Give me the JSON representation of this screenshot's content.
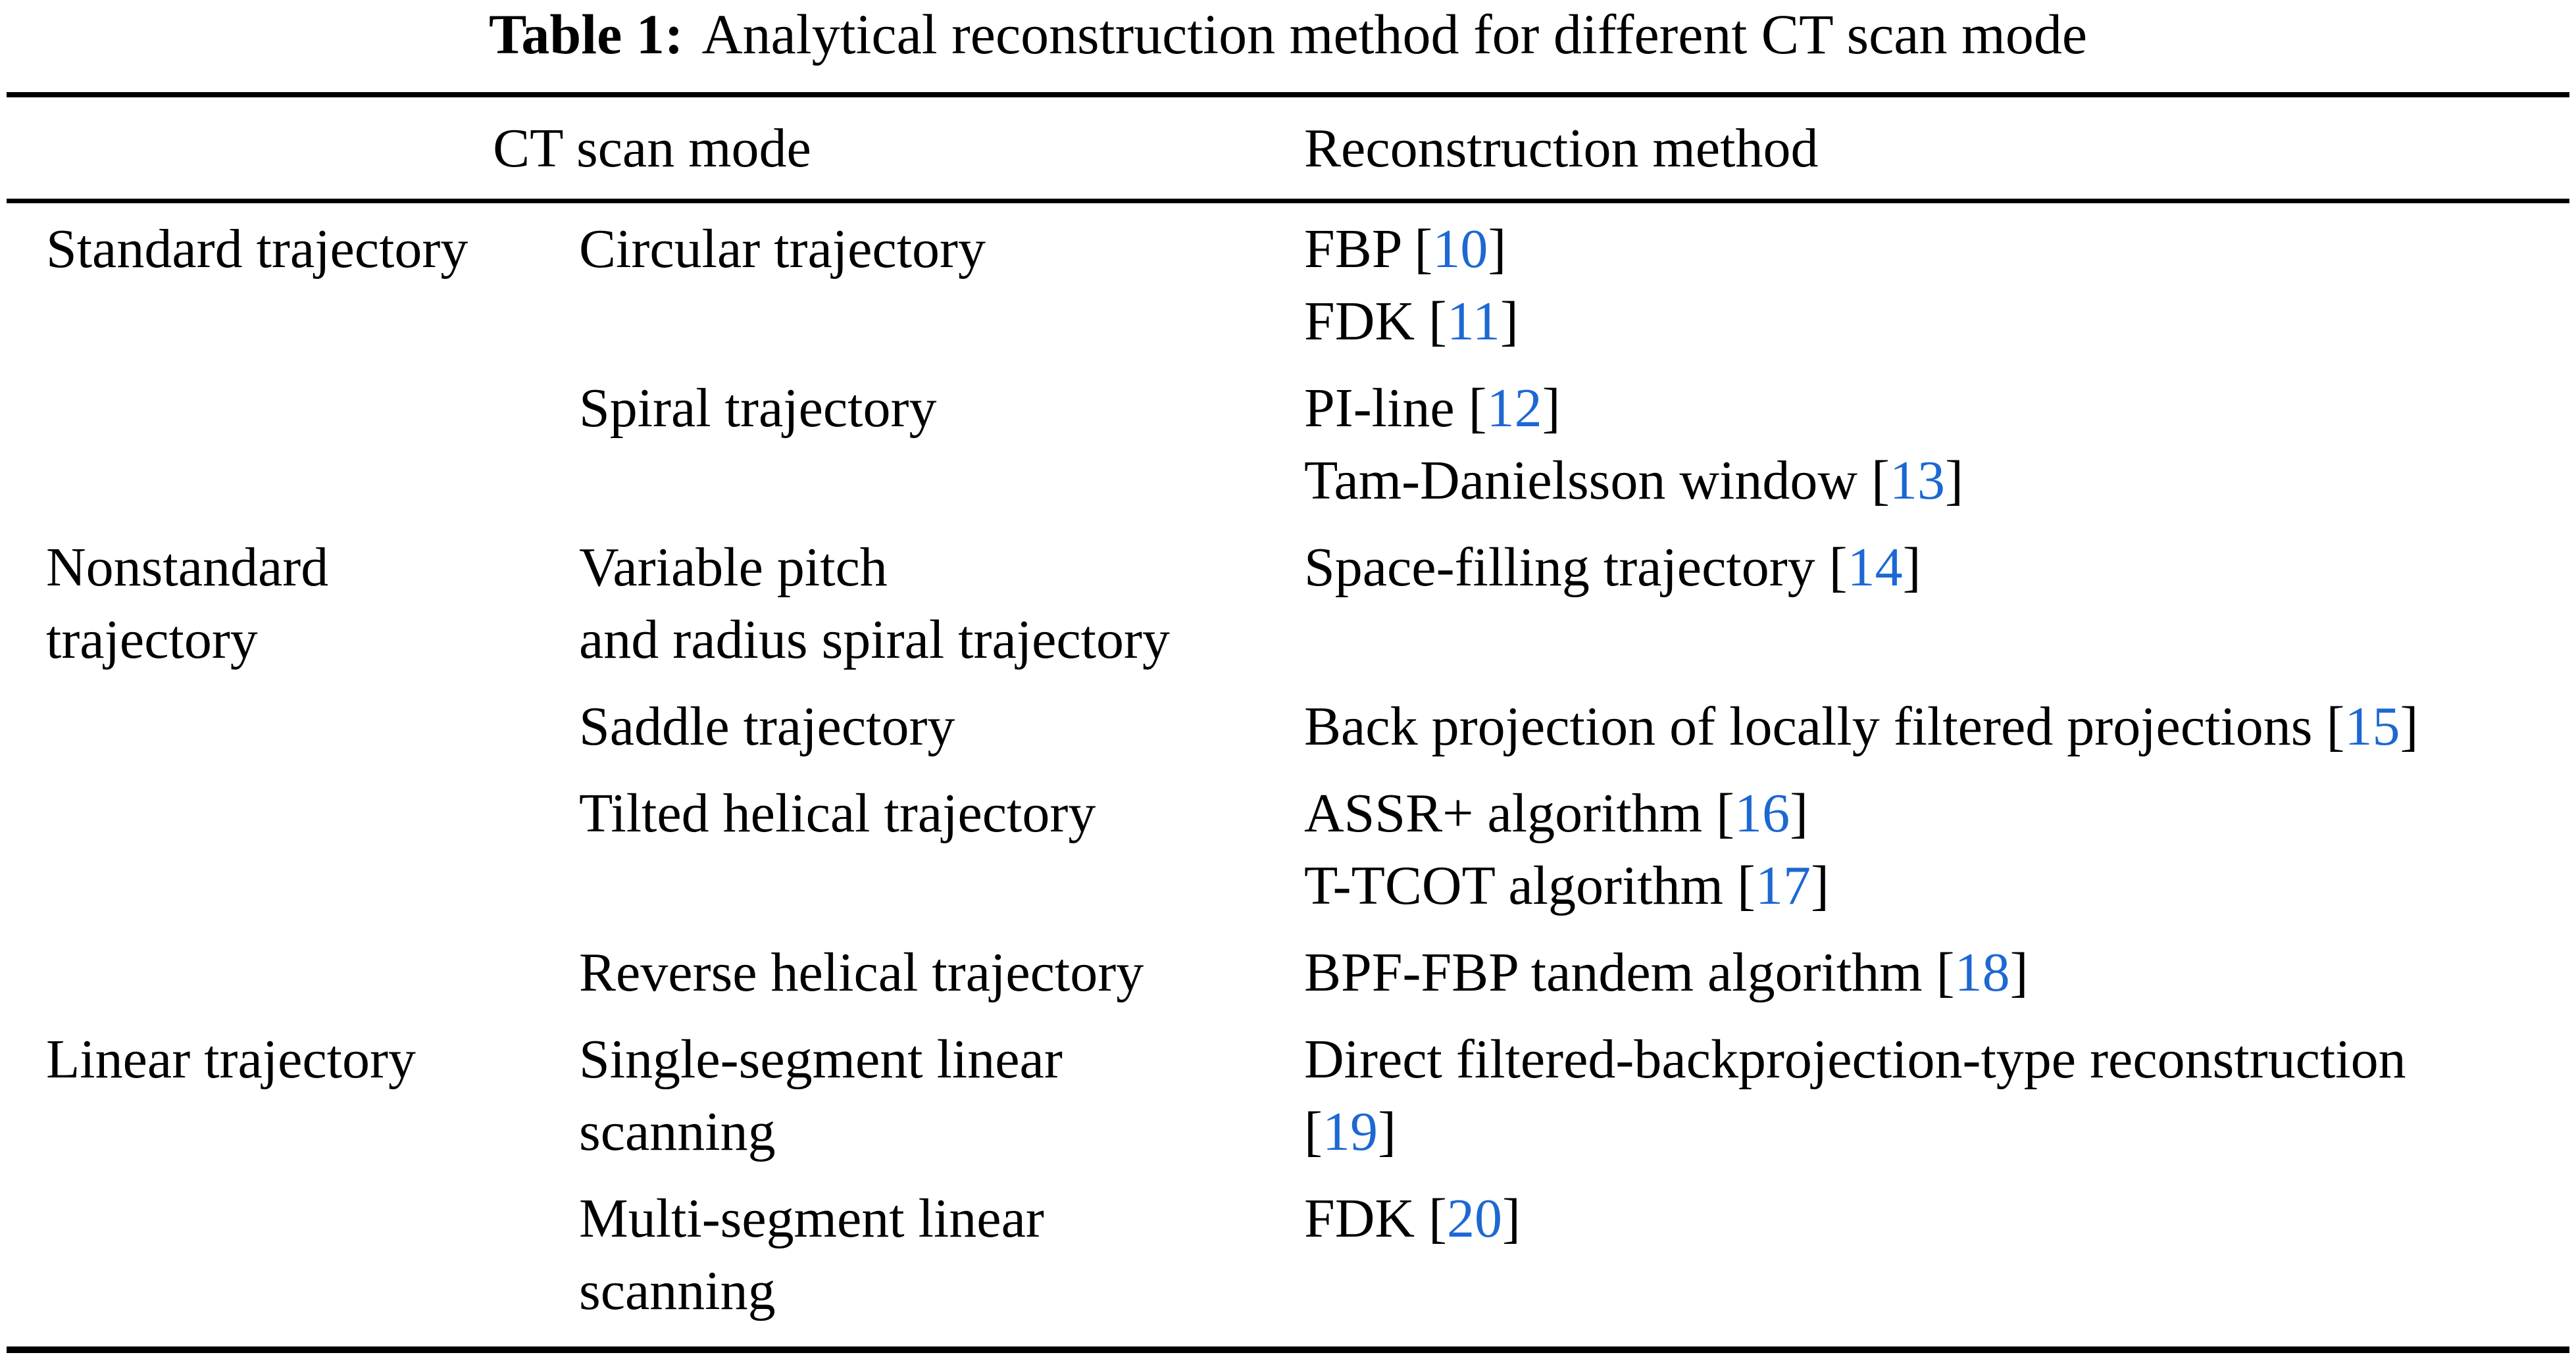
{
  "title": {
    "label": "Table 1:",
    "text": "Analytical reconstruction method for different CT scan mode"
  },
  "header": {
    "ct_scan_mode": "CT scan mode",
    "reconstruction_method": "Reconstruction method"
  },
  "colors": {
    "citation": "#1d68d2",
    "text": "#000000",
    "rule": "#000000",
    "background": "#ffffff"
  },
  "rows": [
    {
      "scan_mode_group": [
        "Standard trajectory"
      ],
      "scan_mode_sub": [
        "Circular trajectory"
      ],
      "methods": [
        {
          "pre": "FBP [",
          "cite": "10",
          "post": "]"
        },
        {
          "pre": "FDK [",
          "cite": "11",
          "post": "]"
        }
      ]
    },
    {
      "scan_mode_group": [],
      "scan_mode_sub": [
        "Spiral trajectory"
      ],
      "methods": [
        {
          "pre": "PI-line [",
          "cite": "12",
          "post": "]"
        },
        {
          "pre": "Tam-Danielsson window [",
          "cite": "13",
          "post": "]"
        }
      ]
    },
    {
      "scan_mode_group": [
        "Nonstandard",
        "trajectory"
      ],
      "scan_mode_sub": [
        "Variable pitch",
        "and radius spiral trajectory"
      ],
      "methods": [
        {
          "pre": "Space-filling trajectory [",
          "cite": "14",
          "post": "]"
        }
      ]
    },
    {
      "scan_mode_group": [],
      "scan_mode_sub": [
        "Saddle trajectory"
      ],
      "methods": [
        {
          "pre": "Back projection of locally filtered projections [",
          "cite": "15",
          "post": "]"
        }
      ]
    },
    {
      "scan_mode_group": [],
      "scan_mode_sub": [
        "Tilted helical trajectory"
      ],
      "methods": [
        {
          "pre": "ASSR+ algorithm [",
          "cite": "16",
          "post": "]"
        },
        {
          "pre": "T-TCOT algorithm [",
          "cite": "17",
          "post": "]"
        }
      ]
    },
    {
      "scan_mode_group": [],
      "scan_mode_sub": [
        "Reverse helical trajectory"
      ],
      "methods": [
        {
          "pre": "BPF-FBP tandem algorithm [",
          "cite": "18",
          "post": "]"
        }
      ]
    },
    {
      "scan_mode_group": [
        "Linear trajectory"
      ],
      "scan_mode_sub": [
        "Single-segment linear",
        "scanning"
      ],
      "methods": [
        {
          "pre": "Direct filtered-backprojection-type reconstruction",
          "cite": "",
          "post": ""
        },
        {
          "pre": "[",
          "cite": "19",
          "post": "]"
        }
      ]
    },
    {
      "scan_mode_group": [],
      "scan_mode_sub": [
        "Multi-segment linear",
        "scanning"
      ],
      "methods": [
        {
          "pre": "FDK [",
          "cite": "20",
          "post": "]"
        }
      ]
    }
  ]
}
